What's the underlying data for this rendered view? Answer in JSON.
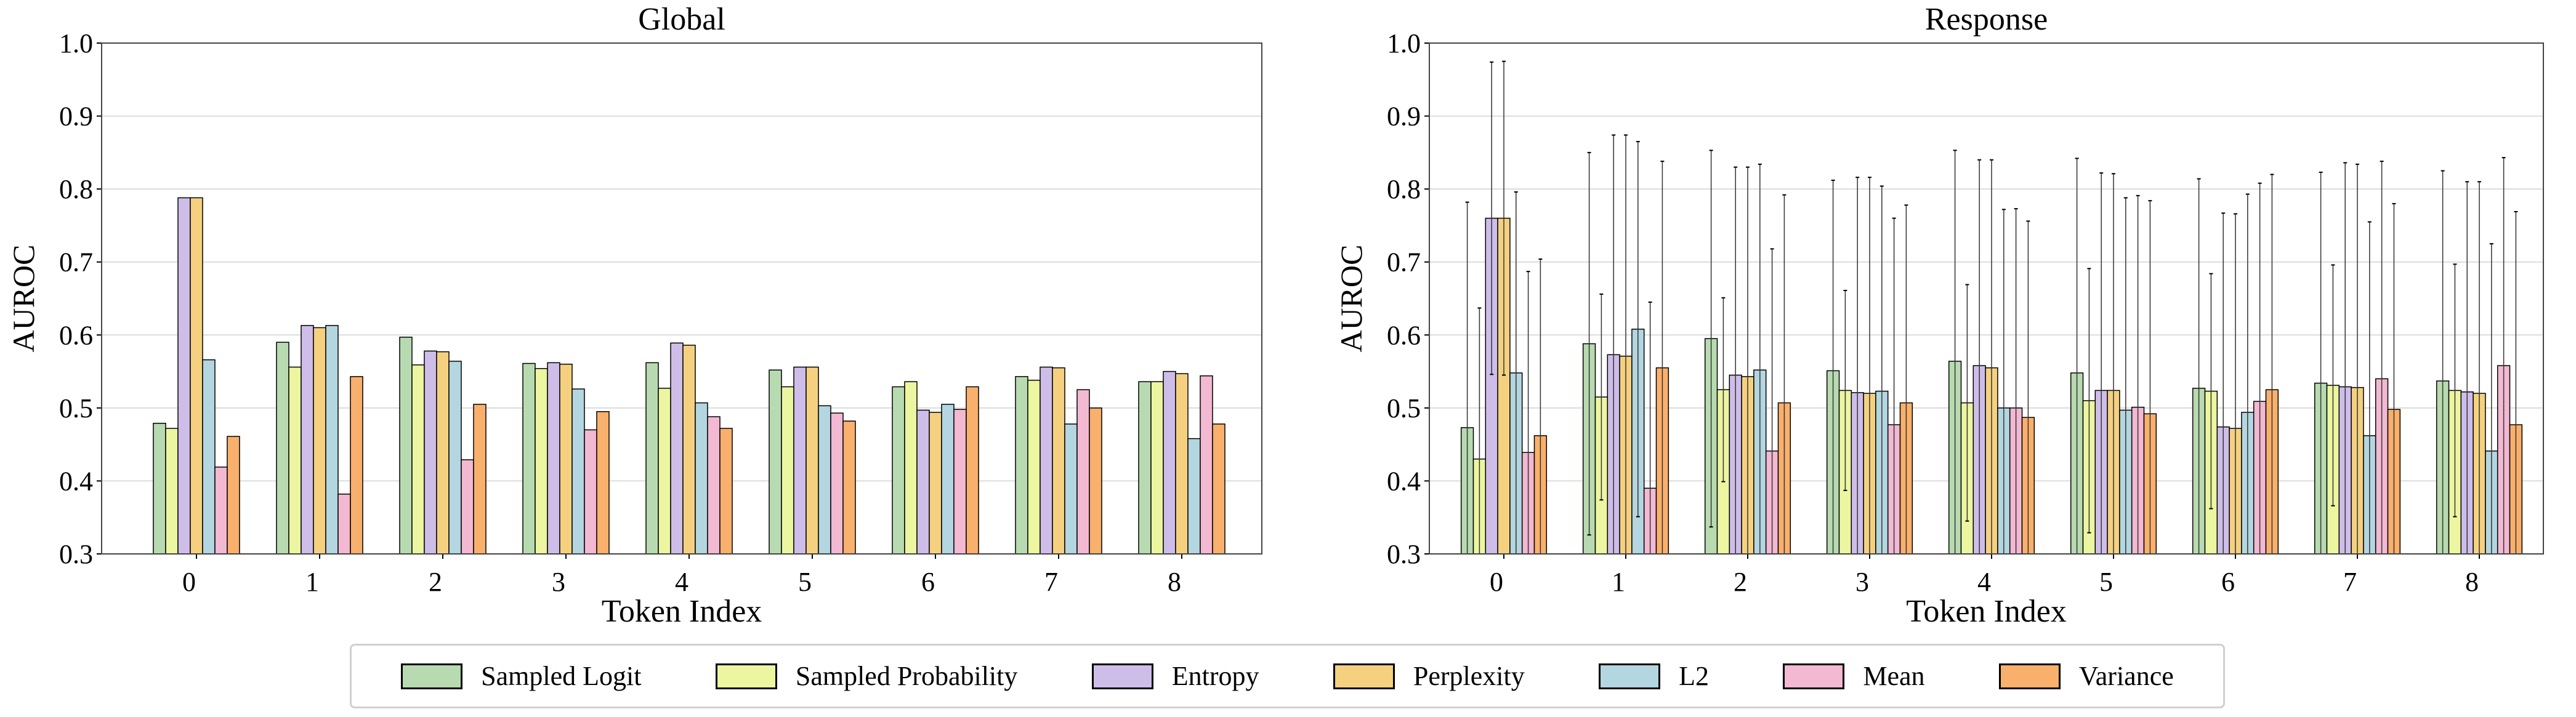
{
  "legend": {
    "items": [
      {
        "label": "Sampled Logit",
        "color": "#b8dab0"
      },
      {
        "label": "Sampled Probability",
        "color": "#ecf5a0"
      },
      {
        "label": "Entropy",
        "color": "#cebde9"
      },
      {
        "label": "Perplexity",
        "color": "#f5d17f"
      },
      {
        "label": "L2",
        "color": "#b3d6e0"
      },
      {
        "label": "Mean",
        "color": "#f3b8d2"
      },
      {
        "label": "Variance",
        "color": "#f9b06c"
      }
    ],
    "placement": "bottom-center"
  },
  "chart_data": [
    {
      "type": "bar",
      "title": "Global",
      "xlabel": "Token Index",
      "ylabel": "AUROC",
      "ylim": [
        0.3,
        1.0
      ],
      "yticks": [
        "0.3",
        "0.4",
        "0.5",
        "0.6",
        "0.7",
        "0.8",
        "0.9",
        "1.0"
      ],
      "grid": true,
      "categories": [
        "0",
        "1",
        "2",
        "3",
        "4",
        "5",
        "6",
        "7",
        "8"
      ],
      "series": [
        {
          "name": "Sampled Logit",
          "values": [
            0.479,
            0.59,
            0.597,
            0.561,
            0.562,
            0.552,
            0.529,
            0.543,
            0.536
          ]
        },
        {
          "name": "Sampled Probability",
          "values": [
            0.472,
            0.556,
            0.559,
            0.554,
            0.527,
            0.529,
            0.536,
            0.538,
            0.536
          ]
        },
        {
          "name": "Entropy",
          "values": [
            0.788,
            0.613,
            0.578,
            0.562,
            0.589,
            0.556,
            0.497,
            0.556,
            0.55
          ]
        },
        {
          "name": "Perplexity",
          "values": [
            0.788,
            0.61,
            0.577,
            0.56,
            0.586,
            0.556,
            0.494,
            0.555,
            0.547
          ]
        },
        {
          "name": "L2",
          "values": [
            0.566,
            0.613,
            0.564,
            0.526,
            0.507,
            0.503,
            0.505,
            0.478,
            0.458
          ]
        },
        {
          "name": "Mean",
          "values": [
            0.419,
            0.382,
            0.429,
            0.47,
            0.488,
            0.493,
            0.498,
            0.525,
            0.544
          ]
        },
        {
          "name": "Variance",
          "values": [
            0.461,
            0.543,
            0.505,
            0.495,
            0.472,
            0.482,
            0.529,
            0.5,
            0.478
          ]
        }
      ]
    },
    {
      "type": "bar",
      "title": "Response",
      "xlabel": "Token Index",
      "ylabel": "AUROC",
      "ylim": [
        0.3,
        1.0
      ],
      "yticks": [
        "0.3",
        "0.4",
        "0.5",
        "0.6",
        "0.7",
        "0.8",
        "0.9",
        "1.0"
      ],
      "grid": true,
      "error_bars": true,
      "categories": [
        "0",
        "1",
        "2",
        "3",
        "4",
        "5",
        "6",
        "7",
        "8"
      ],
      "series": [
        {
          "name": "Sampled Logit",
          "values": [
            0.473,
            0.588,
            0.595,
            0.551,
            0.564,
            0.548,
            0.527,
            0.534,
            0.537
          ],
          "errors": [
            0.309,
            0.262,
            0.258,
            0.261,
            0.289,
            0.294,
            0.287,
            0.289,
            0.288
          ]
        },
        {
          "name": "Sampled Probability",
          "values": [
            0.43,
            0.515,
            0.525,
            0.524,
            0.507,
            0.51,
            0.523,
            0.531,
            0.524
          ],
          "errors": [
            0.207,
            0.141,
            0.126,
            0.137,
            0.162,
            0.181,
            0.161,
            0.165,
            0.173
          ]
        },
        {
          "name": "Entropy",
          "values": [
            0.76,
            0.573,
            0.545,
            0.521,
            0.558,
            0.524,
            0.474,
            0.529,
            0.522
          ],
          "errors": [
            0.214,
            0.301,
            0.285,
            0.295,
            0.282,
            0.298,
            0.293,
            0.307,
            0.288
          ]
        },
        {
          "name": "Perplexity",
          "values": [
            0.76,
            0.571,
            0.543,
            0.52,
            0.555,
            0.524,
            0.472,
            0.528,
            0.52
          ],
          "errors": [
            0.215,
            0.303,
            0.287,
            0.296,
            0.285,
            0.297,
            0.294,
            0.306,
            0.29
          ]
        },
        {
          "name": "L2",
          "values": [
            0.548,
            0.608,
            0.552,
            0.523,
            0.5,
            0.497,
            0.494,
            0.462,
            0.441
          ],
          "errors": [
            0.248,
            0.257,
            0.282,
            0.281,
            0.272,
            0.291,
            0.299,
            0.293,
            0.284
          ]
        },
        {
          "name": "Mean",
          "values": [
            0.439,
            0.39,
            0.441,
            0.477,
            0.5,
            0.501,
            0.509,
            0.54,
            0.558
          ],
          "errors": [
            0.248,
            0.255,
            0.277,
            0.283,
            0.273,
            0.29,
            0.299,
            0.298,
            0.285
          ]
        },
        {
          "name": "Variance",
          "values": [
            0.462,
            0.555,
            0.507,
            0.507,
            0.487,
            0.492,
            0.525,
            0.498,
            0.477
          ],
          "errors": [
            0.242,
            0.283,
            0.285,
            0.271,
            0.269,
            0.292,
            0.295,
            0.282,
            0.292
          ]
        }
      ]
    }
  ]
}
